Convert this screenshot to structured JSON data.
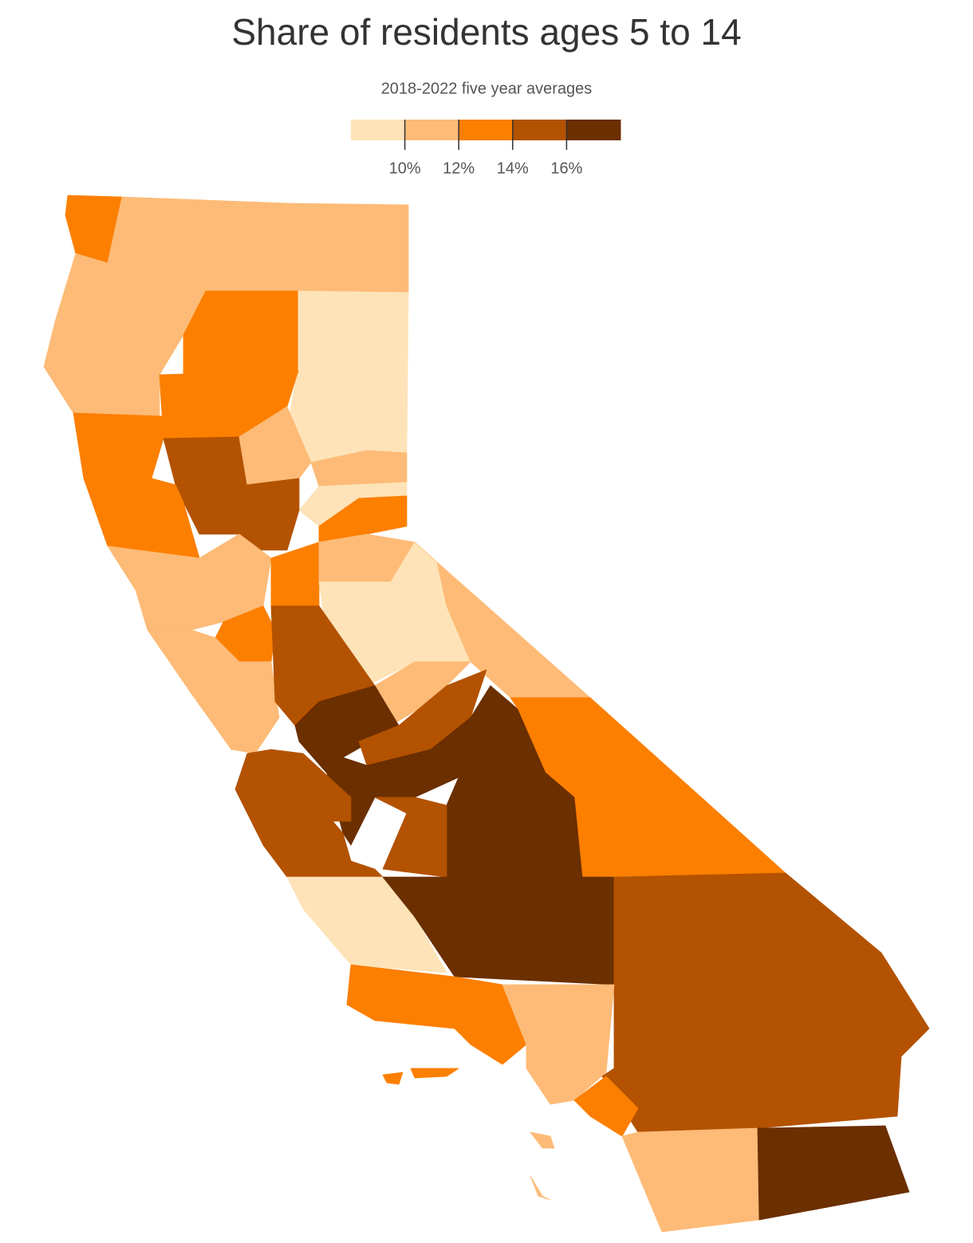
{
  "chart_data": {
    "type": "choropleth",
    "title": "Share of residents ages 5 to 14",
    "subtitle": "2018-2022 five year averages",
    "legend": {
      "colors": [
        "#fee3b8",
        "#fdbb77",
        "#fd7f00",
        "#b35200",
        "#6b2f00"
      ],
      "xlim": [
        8,
        18
      ],
      "xticks": [
        {
          "value": 10,
          "label": "10%"
        },
        {
          "value": 12,
          "label": "12%"
        },
        {
          "value": 14,
          "label": "14%"
        },
        {
          "value": 16,
          "label": "16%"
        }
      ]
    },
    "values": [
      13,
      11,
      11,
      11,
      11,
      13,
      9,
      13,
      13,
      15,
      11,
      11,
      9,
      13,
      15,
      13,
      15,
      11,
      13,
      11,
      9,
      11,
      13,
      11,
      15,
      11,
      17,
      15,
      17,
      13,
      17,
      15,
      15,
      15,
      9,
      17,
      15,
      13,
      13,
      11,
      15,
      13,
      11,
      17,
      13,
      13,
      11,
      11
    ]
  }
}
